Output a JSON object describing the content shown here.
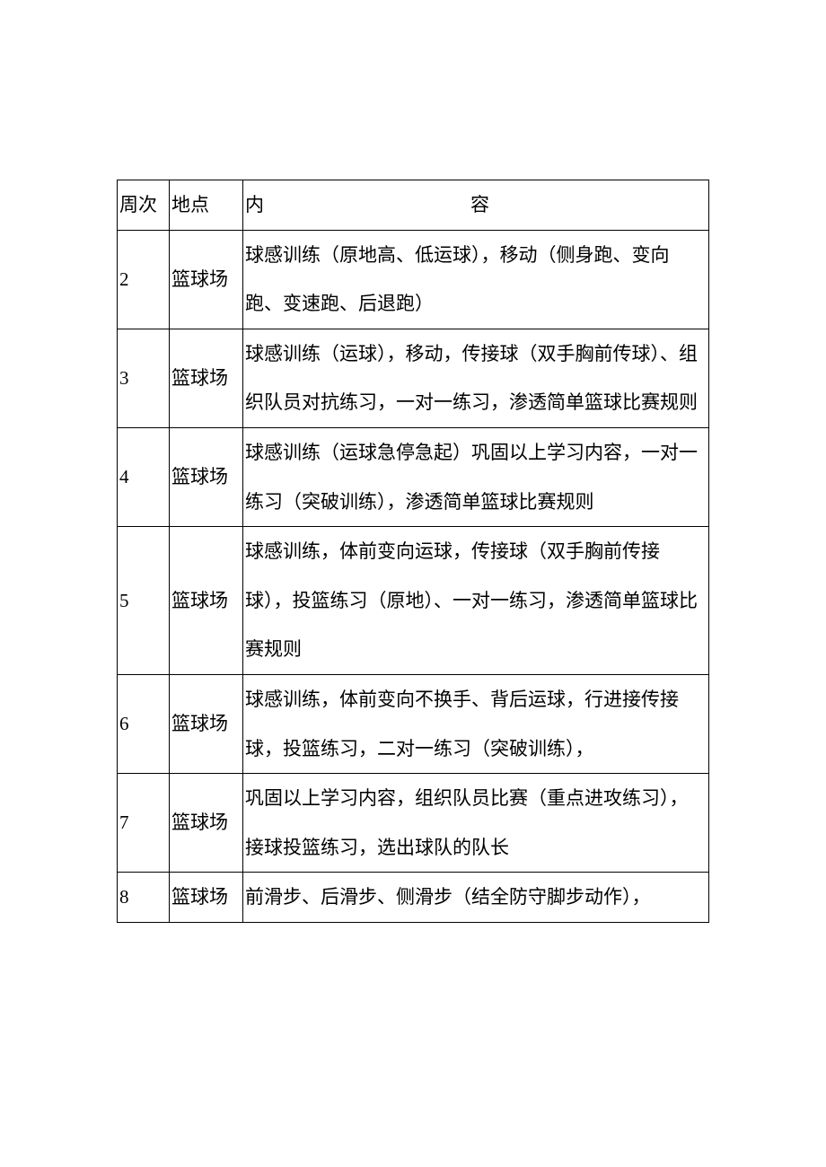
{
  "table": {
    "columns": {
      "week": "周次",
      "place": "地点",
      "content_left": "内",
      "content_right": "容"
    },
    "rows": [
      {
        "week": "2",
        "place": "篮球场",
        "content": "球感训练（原地高、低运球），移动（侧身跑、变向跑、变速跑、后退跑）"
      },
      {
        "week": "3",
        "place": "篮球场",
        "content": "球感训练（运球），移动，传接球（双手胸前传球）、组织队员对抗练习，一对一练习，渗透简单篮球比赛规则"
      },
      {
        "week": "4",
        "place": "篮球场",
        "content": "球感训练（运球急停急起）巩固以上学习内容，一对一练习（突破训练），渗透简单篮球比赛规则"
      },
      {
        "week": "5",
        "place": "篮球场",
        "content": "球感训练，体前变向运球，传接球（双手胸前传接球），投篮练习（原地）、一对一练习，渗透简单篮球比赛规则"
      },
      {
        "week": "6",
        "place": "篮球场",
        "content": "球感训练，体前变向不换手、背后运球，行进接传接球，投篮练习，二对一练习（突破训练），"
      },
      {
        "week": "7",
        "place": "篮球场",
        "content": "巩固以上学习内容，组织队员比赛（重点进攻练习），接球投篮练习，选出球队的队长"
      },
      {
        "week": "8",
        "place": "篮球场",
        "content": "前滑步、后滑步、侧滑步（结全防守脚步动作），"
      }
    ],
    "styling": {
      "border_color": "#000000",
      "border_width": 1.5,
      "background_color": "#ffffff",
      "text_color": "#000000",
      "font_size": 21,
      "font_family": "SimSun",
      "line_height": 2.6,
      "col_widths": {
        "week": 58,
        "place": 82,
        "content": "auto"
      }
    }
  }
}
